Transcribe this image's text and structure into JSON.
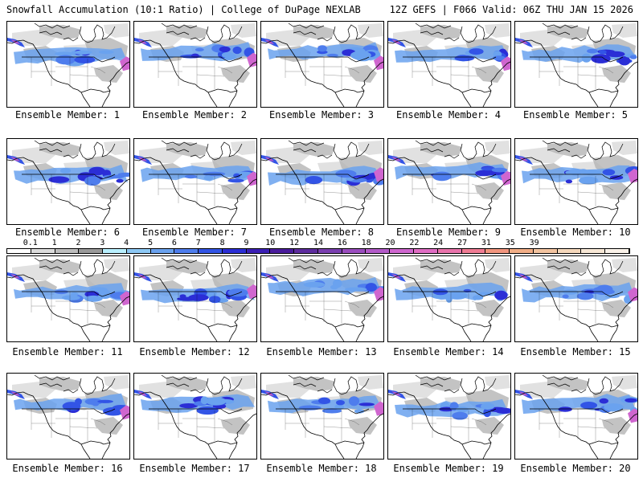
{
  "header": {
    "title_left": "Snowfall Accumulation (10:1 Ratio) | College of DuPage NEXLAB",
    "title_right": "12Z GEFS | F066 Valid: 06Z THU JAN 15 2026"
  },
  "legend": {
    "labels": [
      "0.1",
      "1",
      "2",
      "3",
      "4",
      "5",
      "6",
      "7",
      "8",
      "9",
      "10",
      "12",
      "14",
      "16",
      "18",
      "20",
      "22",
      "24",
      "27",
      "31",
      "35",
      "39"
    ],
    "colors": [
      "#ffffff",
      "#dcdcdc",
      "#bebebe",
      "#9a9a9a",
      "#b9f0ff",
      "#8cc8f5",
      "#6aa2ef",
      "#4e7ded",
      "#3254e6",
      "#2b2ed6",
      "#3b1fb5",
      "#4a1c9c",
      "#5d2c9e",
      "#7a3fb0",
      "#9a4dbf",
      "#b35ac9",
      "#cf66cf",
      "#e06dc4",
      "#ea74ac",
      "#f07c94",
      "#f2957e",
      "#f2ae86",
      "#f3c4a0",
      "#f5d8bc",
      "#f8e8d6",
      "#fbf3ea"
    ]
  },
  "panels": [
    {
      "label": "Ensemble Member: 1"
    },
    {
      "label": "Ensemble Member: 2"
    },
    {
      "label": "Ensemble Member: 3"
    },
    {
      "label": "Ensemble Member: 4"
    },
    {
      "label": "Ensemble Member: 5"
    },
    {
      "label": "Ensemble Member: 6"
    },
    {
      "label": "Ensemble Member: 7"
    },
    {
      "label": "Ensemble Member: 8"
    },
    {
      "label": "Ensemble Member: 9"
    },
    {
      "label": "Ensemble Member: 10"
    },
    {
      "label": "Ensemble Member: 11"
    },
    {
      "label": "Ensemble Member: 12"
    },
    {
      "label": "Ensemble Member: 13"
    },
    {
      "label": "Ensemble Member: 14"
    },
    {
      "label": "Ensemble Member: 15"
    },
    {
      "label": "Ensemble Member: 16"
    },
    {
      "label": "Ensemble Member: 17"
    },
    {
      "label": "Ensemble Member: 18"
    },
    {
      "label": "Ensemble Member: 19"
    },
    {
      "label": "Ensemble Member: 20"
    }
  ]
}
